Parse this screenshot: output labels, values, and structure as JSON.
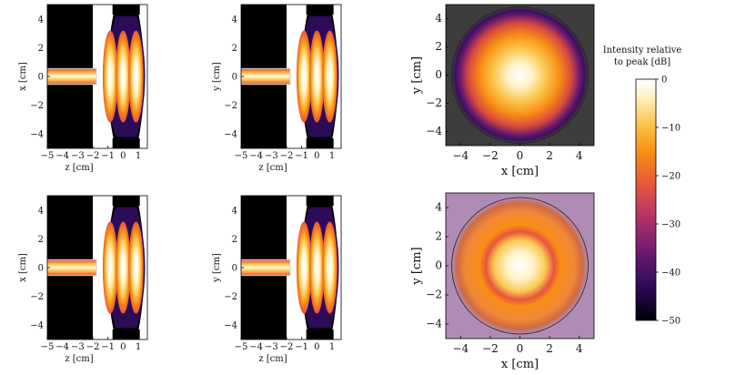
{
  "figure": {
    "colorbar": {
      "title_line1": "Intensity relative",
      "title_line2": "to peak  [dB]",
      "ticks": [
        "0",
        "−10",
        "−20",
        "−30",
        "−40",
        "−50"
      ],
      "min": -50,
      "max": 0,
      "colormap": "inferno",
      "colors": [
        "#000004",
        "#2c0b57",
        "#6a1a6e",
        "#b0306b",
        "#e8543e",
        "#f98f14",
        "#fbc850",
        "#fff3c8",
        "#ffffff"
      ]
    }
  },
  "chart_data": [
    {
      "type": "heatmap",
      "panel": "top-left",
      "xlabel": "z [cm]",
      "ylabel": "x [cm]",
      "x_ticks": [
        "−5",
        "−4",
        "−3",
        "−2",
        "−1",
        "0",
        "1"
      ],
      "y_ticks": [
        "4",
        "2",
        "0",
        "−2",
        "−4"
      ],
      "xlim": [
        -5,
        1.6
      ],
      "ylim": [
        -5,
        5
      ],
      "color_scale": "intensity relative to peak [dB]"
    },
    {
      "type": "heatmap",
      "panel": "top-middle",
      "xlabel": "z [cm]",
      "ylabel": "y [cm]",
      "x_ticks": [
        "−5",
        "−4",
        "−3",
        "−2",
        "−1",
        "0",
        "1"
      ],
      "y_ticks": [
        "4",
        "2",
        "0",
        "−2",
        "−4"
      ],
      "xlim": [
        -5,
        1.6
      ],
      "ylim": [
        -5,
        5
      ],
      "color_scale": "intensity relative to peak [dB]"
    },
    {
      "type": "heatmap",
      "panel": "top-right",
      "xlabel": "x [cm]",
      "ylabel": "y [cm]",
      "x_ticks": [
        "−4",
        "−2",
        "0",
        "2",
        "4"
      ],
      "y_ticks": [
        "4",
        "2",
        "0",
        "−2",
        "−4"
      ],
      "xlim": [
        -5,
        5
      ],
      "ylim": [
        -5,
        5
      ],
      "background": "#3d3d3d",
      "color_scale": "intensity relative to peak [dB]"
    },
    {
      "type": "heatmap",
      "panel": "bottom-left",
      "xlabel": "z [cm]",
      "ylabel": "x [cm]",
      "x_ticks": [
        "−5",
        "−4",
        "−3",
        "−2",
        "−1",
        "0",
        "1"
      ],
      "y_ticks": [
        "4",
        "2",
        "0",
        "−2",
        "−4"
      ],
      "xlim": [
        -5,
        1.6
      ],
      "ylim": [
        -5,
        5
      ],
      "color_scale": "intensity relative to peak [dB]"
    },
    {
      "type": "heatmap",
      "panel": "bottom-middle",
      "xlabel": "z [cm]",
      "ylabel": "y [cm]",
      "x_ticks": [
        "−5",
        "−4",
        "−3",
        "−2",
        "−1",
        "0",
        "1"
      ],
      "y_ticks": [
        "4",
        "2",
        "0",
        "−2",
        "−4"
      ],
      "xlim": [
        -5,
        1.6
      ],
      "ylim": [
        -5,
        5
      ],
      "color_scale": "intensity relative to peak [dB]"
    },
    {
      "type": "heatmap",
      "panel": "bottom-right",
      "xlabel": "x [cm]",
      "ylabel": "y [cm]",
      "x_ticks": [
        "−4",
        "−2",
        "0",
        "2",
        "4"
      ],
      "y_ticks": [
        "4",
        "2",
        "0",
        "−2",
        "−4"
      ],
      "xlim": [
        -5,
        5
      ],
      "ylim": [
        -5,
        5
      ],
      "background": "#b08cb4",
      "color_scale": "intensity relative to peak [dB]"
    }
  ]
}
